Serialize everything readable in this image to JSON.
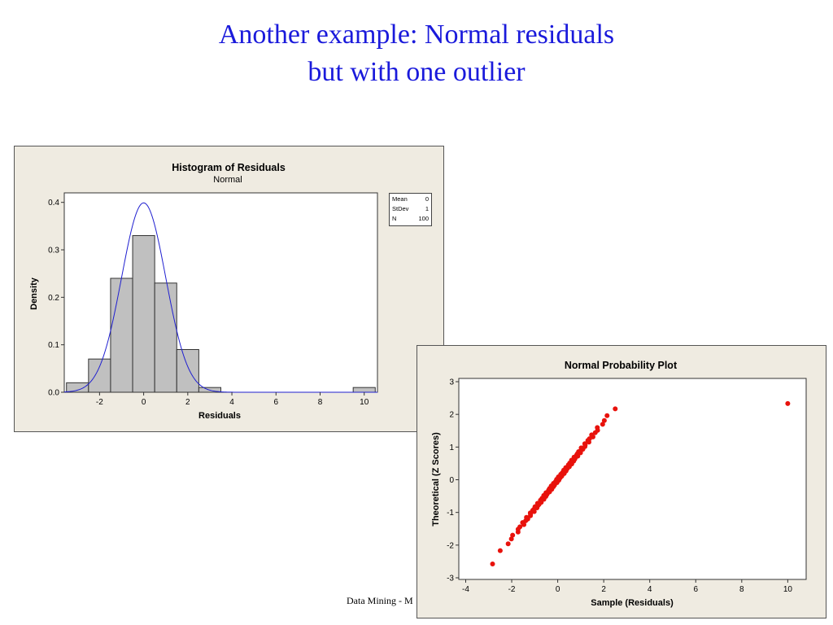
{
  "slide": {
    "title_line1": "Another example: Normal residuals",
    "title_line2": "but with one outlier",
    "footer": "Data Mining - M"
  },
  "chart_data": [
    {
      "type": "bar",
      "title": "Histogram of Residuals",
      "subtitle": "Normal",
      "xlabel": "Residuals",
      "ylabel": "Density",
      "xlim": [
        -3.6,
        10.6
      ],
      "ylim": [
        0,
        0.42
      ],
      "xticks": [
        -2,
        0,
        2,
        4,
        6,
        8,
        10
      ],
      "yticks": [
        0.0,
        0.1,
        0.2,
        0.3,
        0.4
      ],
      "bin_width": 1,
      "bins": [
        {
          "start": -3.5,
          "end": -2.5,
          "density": 0.02
        },
        {
          "start": -2.5,
          "end": -1.5,
          "density": 0.07
        },
        {
          "start": -1.5,
          "end": -0.5,
          "density": 0.24
        },
        {
          "start": -0.5,
          "end": 0.5,
          "density": 0.33
        },
        {
          "start": 0.5,
          "end": 1.5,
          "density": 0.23
        },
        {
          "start": 1.5,
          "end": 2.5,
          "density": 0.09
        },
        {
          "start": 2.5,
          "end": 3.5,
          "density": 0.01
        },
        {
          "start": 9.5,
          "end": 10.5,
          "density": 0.01
        }
      ],
      "fit": {
        "distribution": "Normal",
        "mean": 0,
        "stdev": 1
      },
      "legend": {
        "position": "right",
        "rows": [
          {
            "label": "Mean",
            "value": "0"
          },
          {
            "label": "StDev",
            "value": "1"
          },
          {
            "label": "N",
            "value": "100"
          }
        ]
      },
      "colors": {
        "bar": "#c0c0c0",
        "curve": "#1f1fd0"
      },
      "grid": false
    },
    {
      "type": "scatter",
      "title": "Normal Probability Plot",
      "xlabel": "Sample (Residuals)",
      "ylabel": "Theoretical (Z Scores)",
      "xlim": [
        -4.3,
        10.8
      ],
      "ylim": [
        -3.05,
        3.1
      ],
      "xticks": [
        -4,
        -2,
        0,
        2,
        4,
        6,
        8,
        10
      ],
      "yticks": [
        -3,
        -2,
        -1,
        0,
        1,
        2,
        3
      ],
      "n": 100,
      "outlier": {
        "x": 10.0,
        "y": 2.33
      },
      "colors": {
        "points": "#e8120c"
      },
      "grid": false
    }
  ]
}
